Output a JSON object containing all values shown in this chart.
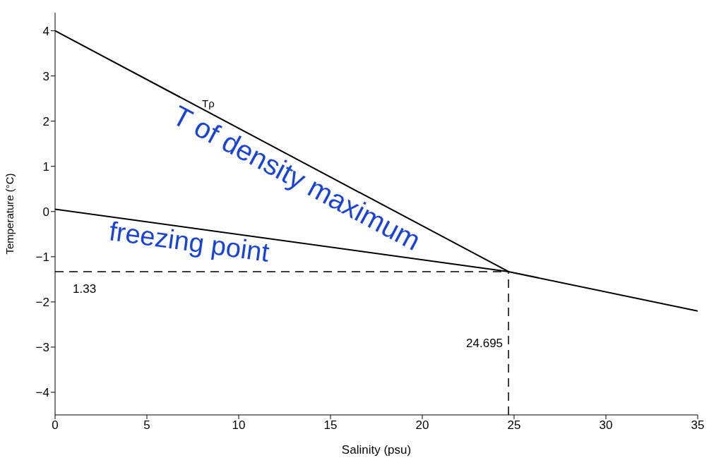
{
  "chart_data": {
    "type": "line",
    "xlabel": "Salinity (psu)",
    "ylabel": "Temperature (°C)",
    "xlim": [
      0,
      35
    ],
    "ylim": [
      -4.5,
      4.4
    ],
    "xticks": [
      0,
      5,
      10,
      15,
      20,
      25,
      30,
      35
    ],
    "yticks": [
      -4,
      -3,
      -2,
      -1,
      0,
      1,
      2,
      3,
      4
    ],
    "grid": false,
    "marker": "none",
    "series": [
      {
        "name": "T of density maximum",
        "color": "#000000",
        "x": [
          0,
          24.695
        ],
        "values": [
          4,
          -1.33
        ]
      },
      {
        "name": "freezing point",
        "color": "#000000",
        "x": [
          0,
          24.695,
          35
        ],
        "values": [
          0.05,
          -1.33,
          -2.2
        ]
      }
    ],
    "ref_lines": [
      {
        "axis": "y",
        "value": -1.33,
        "line_style": "dashed"
      },
      {
        "axis": "x",
        "value": 24.695,
        "label": "24.695",
        "line_style": "dashed"
      }
    ],
    "annotations": [
      {
        "text": "Tρ",
        "x": 8,
        "y": 2.3
      },
      "1.33"
    ]
  }
}
